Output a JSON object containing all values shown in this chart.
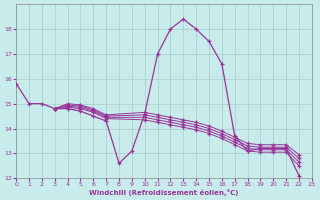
{
  "background_color": "#c8ecec",
  "grid_color": "#a8cccc",
  "line_color": "#993399",
  "xlim": [
    0,
    23
  ],
  "ylim": [
    12,
    19
  ],
  "yticks": [
    12,
    13,
    14,
    15,
    16,
    17,
    18
  ],
  "xtick_labels": [
    "0",
    "1",
    "2",
    "3",
    "4",
    "5",
    "6",
    "7",
    "8",
    "9",
    "10",
    "11",
    "12",
    "13",
    "14",
    "15",
    "16",
    "17",
    "18",
    "19",
    "20",
    "21",
    "22",
    "23"
  ],
  "xlabel": "Windchill (Refroidissement éolien,°C)",
  "lines": [
    {
      "x": [
        0,
        1,
        2,
        3,
        4,
        5,
        6,
        7,
        8,
        9,
        10,
        11,
        12,
        13,
        14,
        15,
        16,
        17,
        18,
        19,
        20,
        21,
        22
      ],
      "y": [
        15.8,
        15.0,
        15.0,
        14.8,
        14.8,
        14.7,
        14.5,
        14.3,
        12.6,
        13.1,
        14.6,
        17.0,
        18.0,
        18.4,
        18.0,
        17.5,
        16.6,
        13.7,
        13.1,
        13.2,
        13.2,
        13.2,
        12.1
      ],
      "marker": true
    },
    {
      "x": [
        3,
        4,
        5,
        6,
        7,
        10,
        11,
        12,
        13,
        14,
        15,
        16,
        17,
        18,
        19,
        20,
        21,
        22
      ],
      "y": [
        14.8,
        14.85,
        14.8,
        14.65,
        14.4,
        14.35,
        14.25,
        14.15,
        14.05,
        13.95,
        13.8,
        13.6,
        13.35,
        13.1,
        13.05,
        13.05,
        13.05,
        12.5
      ],
      "marker": true
    },
    {
      "x": [
        3,
        4,
        5,
        6,
        7,
        10,
        11,
        12,
        13,
        14,
        15,
        16,
        17,
        18,
        19,
        20,
        21,
        22
      ],
      "y": [
        14.8,
        14.9,
        14.85,
        14.7,
        14.45,
        14.45,
        14.35,
        14.25,
        14.15,
        14.05,
        13.9,
        13.7,
        13.45,
        13.2,
        13.15,
        13.15,
        13.15,
        12.65
      ],
      "marker": true
    },
    {
      "x": [
        3,
        4,
        5,
        6,
        7,
        10,
        11,
        12,
        13,
        14,
        15,
        16,
        17,
        18,
        19,
        20,
        21,
        22
      ],
      "y": [
        14.8,
        14.95,
        14.9,
        14.75,
        14.5,
        14.55,
        14.45,
        14.35,
        14.25,
        14.15,
        14.0,
        13.8,
        13.55,
        13.3,
        13.25,
        13.25,
        13.25,
        12.8
      ],
      "marker": true
    },
    {
      "x": [
        3,
        4,
        5,
        6,
        7,
        10,
        11,
        12,
        13,
        14,
        15,
        16,
        17,
        18,
        19,
        20,
        21,
        22
      ],
      "y": [
        14.8,
        15.0,
        14.95,
        14.8,
        14.55,
        14.65,
        14.55,
        14.45,
        14.35,
        14.25,
        14.1,
        13.9,
        13.65,
        13.4,
        13.35,
        13.35,
        13.35,
        12.95
      ],
      "marker": true
    }
  ]
}
